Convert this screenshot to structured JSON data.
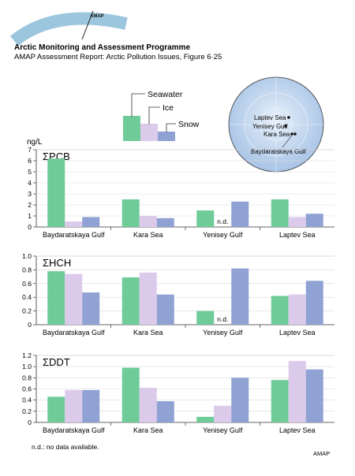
{
  "header": {
    "logo_text": "AMAP",
    "title": "Arctic Monitoring and Assessment Programme",
    "subtitle": "AMAP Assessment Report: Arctic Pollution Issues, Figure 6·25"
  },
  "legend": {
    "items": [
      {
        "name": "Seawater",
        "color": "#6fcb98"
      },
      {
        "name": "Ice",
        "color": "#dccaeb"
      },
      {
        "name": "Snow",
        "color": "#8fa2d3"
      }
    ]
  },
  "inset_map": {
    "labels": [
      "Laptev Sea",
      "Yenisey Gulf",
      "Kara Sea",
      "Baydaratskaya Gulf"
    ]
  },
  "unit_label": "ng/L",
  "footnote": "n.d.: no data available.",
  "credit": "AMAP",
  "colors": {
    "seawater": "#6fcb98",
    "ice": "#dccaeb",
    "snow": "#8fa2d3"
  },
  "chart_data": [
    {
      "type": "bar",
      "title": "ΣPCB",
      "ylabel": "ng/L",
      "ylim": [
        0,
        7
      ],
      "ticks": [
        "0",
        "1",
        "2",
        "3",
        "4",
        "5",
        "6",
        "7"
      ],
      "categories": [
        "Baydaratskaya Gulf",
        "Kara Sea",
        "Yenisey Gulf",
        "Laptev Sea"
      ],
      "series": [
        {
          "name": "Seawater",
          "values": [
            6.2,
            2.5,
            1.5,
            2.5
          ]
        },
        {
          "name": "Ice",
          "values": [
            0.5,
            1.0,
            null,
            0.9
          ]
        },
        {
          "name": "Snow",
          "values": [
            0.9,
            0.8,
            2.3,
            1.2
          ]
        }
      ],
      "annotations": [
        {
          "category": "Yenisey Gulf",
          "series": "Ice",
          "text": "n.d."
        }
      ]
    },
    {
      "type": "bar",
      "title": "ΣHCH",
      "ylim": [
        0,
        1.0
      ],
      "ticks": [
        "0",
        "0.2",
        "0.4",
        "0.6",
        "0.8",
        "1.0"
      ],
      "categories": [
        "Baydaratskaya Gulf",
        "Kara Sea",
        "Yenisey Gulf",
        "Laptev Sea"
      ],
      "series": [
        {
          "name": "Seawater",
          "values": [
            0.78,
            0.69,
            0.2,
            0.42
          ]
        },
        {
          "name": "Ice",
          "values": [
            0.74,
            0.76,
            null,
            0.44
          ]
        },
        {
          "name": "Snow",
          "values": [
            0.47,
            0.44,
            0.82,
            0.64
          ]
        }
      ],
      "annotations": [
        {
          "category": "Yenisey Gulf",
          "series": "Ice",
          "text": "n.d."
        }
      ]
    },
    {
      "type": "bar",
      "title": "ΣDDT",
      "ylim": [
        0,
        1.2
      ],
      "ticks": [
        "0",
        "0.2",
        "0.4",
        "0.6",
        "0.8",
        "1.0",
        "1.2"
      ],
      "categories": [
        "Baydaratskaya Gulf",
        "Kara Sea",
        "Yenisey Gulf",
        "Laptev Sea"
      ],
      "series": [
        {
          "name": "Seawater",
          "values": [
            0.46,
            0.98,
            0.1,
            0.76
          ]
        },
        {
          "name": "Ice",
          "values": [
            0.58,
            0.62,
            0.3,
            1.1
          ]
        },
        {
          "name": "Snow",
          "values": [
            0.58,
            0.38,
            0.8,
            0.95
          ]
        }
      ],
      "annotations": []
    }
  ]
}
